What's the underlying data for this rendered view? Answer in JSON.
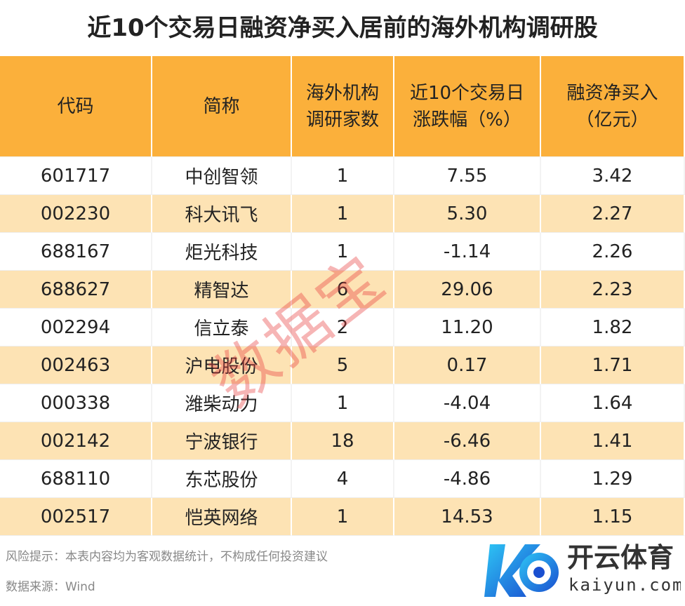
{
  "title": "近10个交易日融资净买入居前的海外机构调研股",
  "table": {
    "header": [
      [
        "代码"
      ],
      [
        "简称"
      ],
      [
        "海外机构",
        "调研家数"
      ],
      [
        "近10个交易日",
        "涨跌幅（%）"
      ],
      [
        "融资净买入",
        "（亿元）"
      ]
    ],
    "rows": [
      [
        "601717",
        "中创智领",
        "1",
        "7.55",
        "3.42"
      ],
      [
        "002230",
        "科大讯飞",
        "1",
        "5.30",
        "2.27"
      ],
      [
        "688167",
        "炬光科技",
        "1",
        "-1.14",
        "2.26"
      ],
      [
        "688627",
        "精智达",
        "6",
        "29.06",
        "2.23"
      ],
      [
        "002294",
        "信立泰",
        "2",
        "11.20",
        "1.82"
      ],
      [
        "002463",
        "沪电股份",
        "5",
        "0.17",
        "1.71"
      ],
      [
        "000338",
        "潍柴动力",
        "1",
        "-4.04",
        "1.64"
      ],
      [
        "002142",
        "宁波银行",
        "18",
        "-6.46",
        "1.41"
      ],
      [
        "688110",
        "东芯股份",
        "4",
        "-4.86",
        "1.29"
      ],
      [
        "002517",
        "恺英网络",
        "1",
        "14.53",
        "1.15"
      ]
    ]
  },
  "footnotes": [
    "风险提示：本表内容均为客观数据统计，不构成任何投资建议",
    "数据来源：Wind"
  ],
  "watermark": "数据宝",
  "logo": {
    "name": "开云体育",
    "domain": "kaiyun.com"
  }
}
